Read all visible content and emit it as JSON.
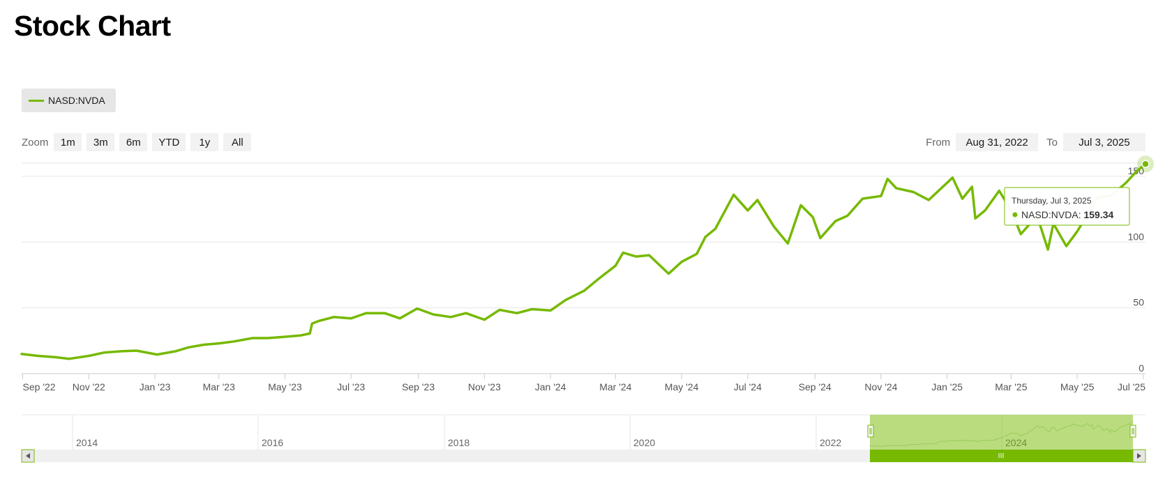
{
  "page": {
    "title": "Stock Chart"
  },
  "legend": {
    "series_name": "NASD:NVDA"
  },
  "zoom": {
    "label": "Zoom",
    "buttons": [
      "1m",
      "3m",
      "6m",
      "YTD",
      "1y",
      "All"
    ]
  },
  "range": {
    "from_label": "From",
    "from_value": "Aug 31, 2022",
    "to_label": "To",
    "to_value": "Jul 3, 2025"
  },
  "tooltip": {
    "date": "Thursday, Jul 3, 2025",
    "series": "NASD:NVDA",
    "value": "159.34"
  },
  "navigator": {
    "year_labels": [
      "2014",
      "2016",
      "2018",
      "2020",
      "2022",
      "2024"
    ]
  },
  "colors": {
    "series": "#76b900",
    "grid": "#e6e6e6",
    "axis_text": "#555555"
  },
  "icons": {
    "scroll_left": "arrow-left-icon",
    "scroll_right": "arrow-right-icon",
    "handle": "grip-icon"
  },
  "chart_data": {
    "type": "line",
    "title": "",
    "xlabel": "",
    "ylabel": "",
    "ylim": [
      0,
      160
    ],
    "y_ticks": [
      0,
      50,
      100,
      150
    ],
    "x_range": [
      "2022-08-31",
      "2025-07-03"
    ],
    "x_ticks": [
      {
        "date": "2022-09-01",
        "label": "Sep '22"
      },
      {
        "date": "2022-11-01",
        "label": "Nov '22"
      },
      {
        "date": "2023-01-01",
        "label": "Jan '23"
      },
      {
        "date": "2023-03-01",
        "label": "Mar '23"
      },
      {
        "date": "2023-05-01",
        "label": "May '23"
      },
      {
        "date": "2023-07-01",
        "label": "Jul '23"
      },
      {
        "date": "2023-09-01",
        "label": "Sep '23"
      },
      {
        "date": "2023-11-01",
        "label": "Nov '23"
      },
      {
        "date": "2024-01-01",
        "label": "Jan '24"
      },
      {
        "date": "2024-03-01",
        "label": "Mar '24"
      },
      {
        "date": "2024-05-01",
        "label": "May '24"
      },
      {
        "date": "2024-07-01",
        "label": "Jul '24"
      },
      {
        "date": "2024-09-01",
        "label": "Sep '24"
      },
      {
        "date": "2024-11-01",
        "label": "Nov '24"
      },
      {
        "date": "2025-01-01",
        "label": "Jan '25"
      },
      {
        "date": "2025-03-01",
        "label": "Mar '25"
      },
      {
        "date": "2025-05-01",
        "label": "May '25"
      },
      {
        "date": "2025-07-01",
        "label": "Jul '25"
      }
    ],
    "series": [
      {
        "name": "NASD:NVDA",
        "points": [
          [
            "2022-08-31",
            15
          ],
          [
            "2022-09-15",
            13.5
          ],
          [
            "2022-10-01",
            12.5
          ],
          [
            "2022-10-14",
            11.3
          ],
          [
            "2022-11-01",
            13.5
          ],
          [
            "2022-11-15",
            16
          ],
          [
            "2022-12-01",
            17
          ],
          [
            "2022-12-15",
            17.5
          ],
          [
            "2023-01-03",
            14.5
          ],
          [
            "2023-01-20",
            17
          ],
          [
            "2023-02-01",
            20
          ],
          [
            "2023-02-15",
            22
          ],
          [
            "2023-03-01",
            23
          ],
          [
            "2023-03-15",
            24.5
          ],
          [
            "2023-04-01",
            27
          ],
          [
            "2023-04-15",
            27
          ],
          [
            "2023-05-01",
            28
          ],
          [
            "2023-05-15",
            29
          ],
          [
            "2023-05-24",
            30.5
          ],
          [
            "2023-05-26",
            38
          ],
          [
            "2023-06-01",
            40
          ],
          [
            "2023-06-15",
            43
          ],
          [
            "2023-07-01",
            42
          ],
          [
            "2023-07-15",
            46
          ],
          [
            "2023-08-01",
            46
          ],
          [
            "2023-08-15",
            42
          ],
          [
            "2023-08-31",
            49.5
          ],
          [
            "2023-09-15",
            45
          ],
          [
            "2023-10-01",
            43
          ],
          [
            "2023-10-15",
            46
          ],
          [
            "2023-11-01",
            41
          ],
          [
            "2023-11-15",
            48.5
          ],
          [
            "2023-12-01",
            46
          ],
          [
            "2023-12-15",
            49
          ],
          [
            "2024-01-01",
            48
          ],
          [
            "2024-01-15",
            56
          ],
          [
            "2024-02-01",
            63
          ],
          [
            "2024-02-15",
            72.5
          ],
          [
            "2024-03-01",
            82
          ],
          [
            "2024-03-08",
            92
          ],
          [
            "2024-03-20",
            89
          ],
          [
            "2024-04-01",
            90
          ],
          [
            "2024-04-19",
            76
          ],
          [
            "2024-05-01",
            85
          ],
          [
            "2024-05-15",
            91
          ],
          [
            "2024-05-23",
            104
          ],
          [
            "2024-06-01",
            110
          ],
          [
            "2024-06-18",
            136
          ],
          [
            "2024-07-01",
            124
          ],
          [
            "2024-07-10",
            132
          ],
          [
            "2024-07-25",
            112
          ],
          [
            "2024-08-07",
            98.9
          ],
          [
            "2024-08-19",
            128
          ],
          [
            "2024-08-30",
            119
          ],
          [
            "2024-09-06",
            103
          ],
          [
            "2024-09-20",
            116
          ],
          [
            "2024-10-01",
            120
          ],
          [
            "2024-10-15",
            133
          ],
          [
            "2024-11-01",
            135
          ],
          [
            "2024-11-07",
            148
          ],
          [
            "2024-11-15",
            141
          ],
          [
            "2024-12-01",
            138
          ],
          [
            "2024-12-15",
            132
          ],
          [
            "2025-01-06",
            149
          ],
          [
            "2025-01-15",
            133
          ],
          [
            "2025-01-24",
            142
          ],
          [
            "2025-01-27",
            118
          ],
          [
            "2025-02-05",
            124
          ],
          [
            "2025-02-18",
            139
          ],
          [
            "2025-03-01",
            124
          ],
          [
            "2025-03-10",
            106
          ],
          [
            "2025-03-25",
            120
          ],
          [
            "2025-04-04",
            94.3
          ],
          [
            "2025-04-09",
            114
          ],
          [
            "2025-04-21",
            96.9
          ],
          [
            "2025-05-01",
            108
          ],
          [
            "2025-05-12",
            123
          ],
          [
            "2025-05-20",
            134
          ],
          [
            "2025-06-01",
            135
          ],
          [
            "2025-06-15",
            145
          ],
          [
            "2025-06-25",
            154
          ],
          [
            "2025-07-03",
            159.34
          ]
        ]
      }
    ]
  }
}
